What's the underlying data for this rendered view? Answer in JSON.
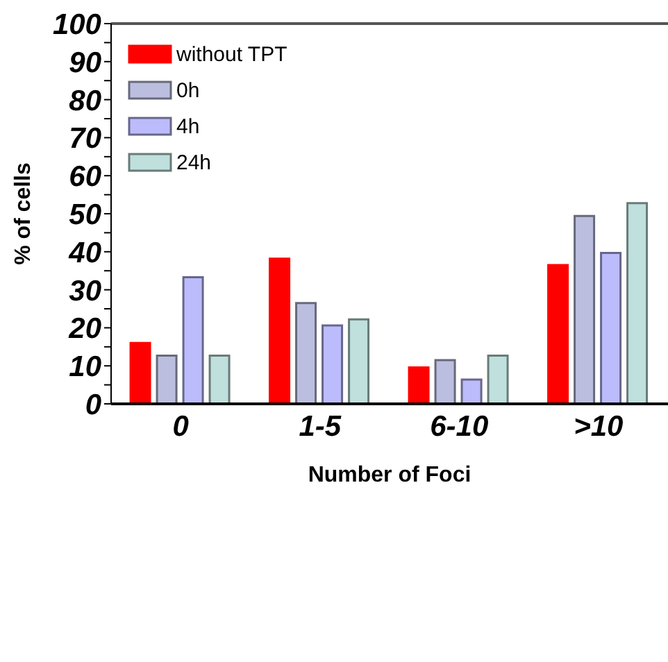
{
  "chart_data": {
    "type": "bar",
    "xlabel": "Number of Foci",
    "ylabel": "% of cells",
    "categories": [
      "0",
      "1-5",
      "6-10",
      ">10"
    ],
    "series": [
      {
        "name": "without TPT",
        "color": "#ff0000",
        "values": [
          16,
          38.2,
          9.6,
          36.5
        ]
      },
      {
        "name": "0h",
        "color": "#bcbedf",
        "values": [
          12.7,
          26.5,
          11.5,
          49.4
        ]
      },
      {
        "name": "4h",
        "color": "#bcbcfc",
        "values": [
          33.3,
          20.6,
          6.4,
          39.7
        ]
      },
      {
        "name": "24h",
        "color": "#bfe0dc",
        "values": [
          12.7,
          22.2,
          12.7,
          52.8
        ]
      }
    ],
    "ylim": [
      0,
      100
    ],
    "yticks": [
      0,
      {
        "value": 5,
        "label": null
      },
      10,
      {
        "value": 15,
        "label": null
      },
      20,
      {
        "value": 25,
        "label": null
      },
      30,
      {
        "value": 35,
        "label": null
      },
      40,
      {
        "value": 45,
        "label": null
      },
      50,
      {
        "value": 55,
        "label": null
      },
      60,
      {
        "value": 65,
        "label": null
      },
      70,
      {
        "value": 75,
        "label": null
      },
      80,
      {
        "value": 85,
        "label": null
      },
      90,
      {
        "value": 95,
        "label": null
      },
      100
    ],
    "grid": false,
    "legend": "top left"
  }
}
